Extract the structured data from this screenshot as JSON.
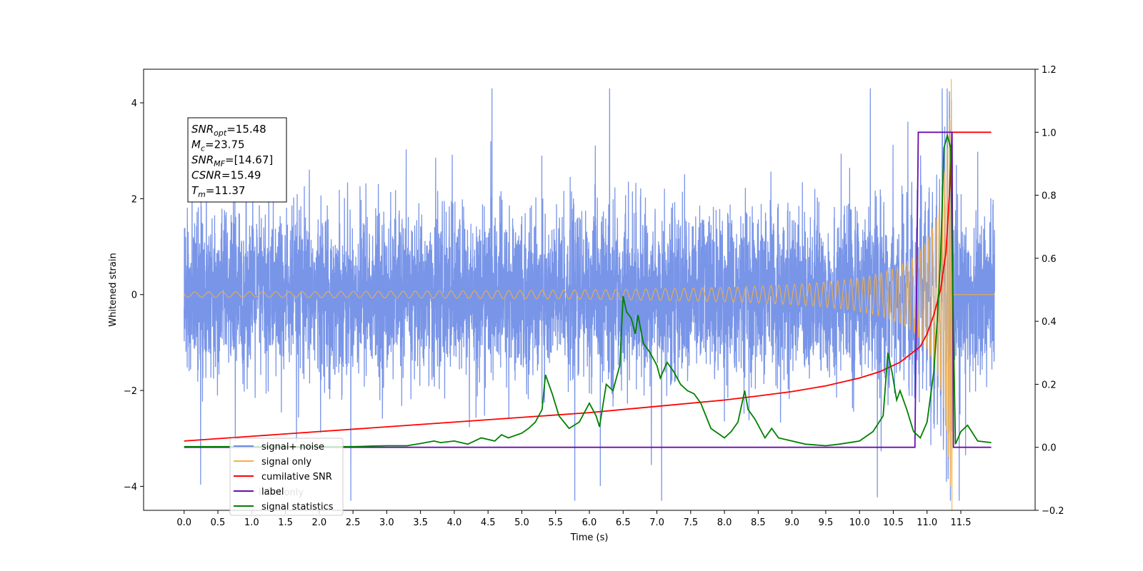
{
  "chart_data": {
    "type": "line",
    "xlabel": "Time (s)",
    "ylabel_left": "Whitened strain",
    "ylabel_right": "",
    "xlim": [
      -0.6,
      12.6
    ],
    "ylim_left": [
      -4.5,
      4.7
    ],
    "ylim_right": [
      -0.2,
      1.2
    ],
    "x_ticks": [
      "0.0",
      "0.5",
      "1.0",
      "1.5",
      "2.0",
      "2.5",
      "3.0",
      "3.5",
      "4.0",
      "4.5",
      "5.0",
      "5.5",
      "6.0",
      "6.5",
      "7.0",
      "7.5",
      "8.0",
      "8.5",
      "9.0",
      "9.5",
      "10.0",
      "10.5",
      "11.0",
      "11.5"
    ],
    "y_ticks_left": [
      "4",
      "2",
      "0",
      "−2",
      "−4"
    ],
    "y_ticks_right": [
      "1.2",
      "1.0",
      "0.8",
      "0.6",
      "0.4",
      "0.2",
      "0.0",
      "−0.2"
    ],
    "grid": false,
    "legend_position": "lower-left",
    "series": [
      {
        "name": "signal+ noise",
        "color": "#6a8ae6",
        "axis": "left",
        "description": "noisy whitened strain, std ~0.9 over 0–12 s"
      },
      {
        "name": "signal only",
        "color": "#f5b041",
        "axis": "left",
        "description": "chirp waveform growing until merger near 11.37 s"
      },
      {
        "name": "cumilative SNR",
        "color": "#ff0000",
        "axis": "right",
        "x": [
          0,
          1,
          2,
          3,
          4,
          5,
          6,
          7,
          8,
          8.5,
          9,
          9.5,
          10,
          10.3,
          10.6,
          10.9,
          11.0,
          11.1,
          11.2,
          11.28,
          11.33,
          11.37,
          11.95
        ],
        "y": [
          0.02,
          0.035,
          0.05,
          0.065,
          0.08,
          0.095,
          0.11,
          0.13,
          0.15,
          0.163,
          0.177,
          0.195,
          0.22,
          0.24,
          0.27,
          0.32,
          0.36,
          0.42,
          0.5,
          0.62,
          0.8,
          1.0,
          1.0
        ]
      },
      {
        "name": "label",
        "color": "#6a0dad",
        "axis": "right",
        "x": [
          0,
          10.82,
          10.87,
          11.37,
          11.39,
          11.95
        ],
        "y": [
          0,
          0,
          1,
          1,
          0,
          0
        ]
      },
      {
        "name": "signal statistics",
        "color": "#008000",
        "axis": "right",
        "x": [
          0,
          0.5,
          1,
          1.5,
          2,
          2.5,
          2.8,
          3.0,
          3.3,
          3.5,
          3.7,
          3.8,
          4.0,
          4.2,
          4.4,
          4.6,
          4.7,
          4.8,
          5.0,
          5.1,
          5.2,
          5.3,
          5.35,
          5.45,
          5.55,
          5.7,
          5.85,
          6.0,
          6.1,
          6.15,
          6.25,
          6.35,
          6.45,
          6.5,
          6.55,
          6.62,
          6.68,
          6.72,
          6.8,
          6.9,
          7.0,
          7.05,
          7.15,
          7.25,
          7.35,
          7.45,
          7.55,
          7.65,
          7.8,
          8.0,
          8.1,
          8.2,
          8.3,
          8.35,
          8.45,
          8.6,
          8.7,
          8.8,
          9.0,
          9.2,
          9.5,
          9.7,
          10.0,
          10.2,
          10.35,
          10.42,
          10.48,
          10.55,
          10.6,
          10.7,
          10.8,
          10.9,
          11.0,
          11.1,
          11.15,
          11.2,
          11.25,
          11.3,
          11.35,
          11.38,
          11.42,
          11.5,
          11.6,
          11.75,
          11.95
        ],
        "y": [
          0.002,
          0.002,
          0.002,
          0.002,
          0.002,
          0.002,
          0.004,
          0.005,
          0.005,
          0.012,
          0.02,
          0.015,
          0.02,
          0.01,
          0.03,
          0.02,
          0.04,
          0.03,
          0.045,
          0.06,
          0.08,
          0.12,
          0.23,
          0.17,
          0.1,
          0.06,
          0.08,
          0.14,
          0.1,
          0.065,
          0.2,
          0.18,
          0.26,
          0.48,
          0.43,
          0.41,
          0.36,
          0.42,
          0.33,
          0.3,
          0.26,
          0.22,
          0.27,
          0.24,
          0.2,
          0.18,
          0.17,
          0.14,
          0.06,
          0.03,
          0.05,
          0.08,
          0.18,
          0.12,
          0.09,
          0.03,
          0.06,
          0.03,
          0.02,
          0.01,
          0.005,
          0.01,
          0.02,
          0.05,
          0.1,
          0.3,
          0.24,
          0.15,
          0.18,
          0.12,
          0.05,
          0.03,
          0.08,
          0.24,
          0.4,
          0.6,
          0.95,
          0.99,
          0.95,
          0.5,
          0.01,
          0.05,
          0.07,
          0.02,
          0.015
        ]
      }
    ],
    "annotation": {
      "lines": [
        {
          "base": "SNR",
          "sub": "opt",
          "value": "=15.48"
        },
        {
          "base": "M",
          "sub": "c",
          "value": "=23.75"
        },
        {
          "base": "SNR",
          "sub": "MF",
          "value": "=[14.67]"
        },
        {
          "base": "CSNR",
          "sub": "",
          "value": "=15.49"
        },
        {
          "base": "T",
          "sub": "m",
          "value": "=11.37"
        }
      ]
    },
    "legend_overlay_text": "label only"
  }
}
